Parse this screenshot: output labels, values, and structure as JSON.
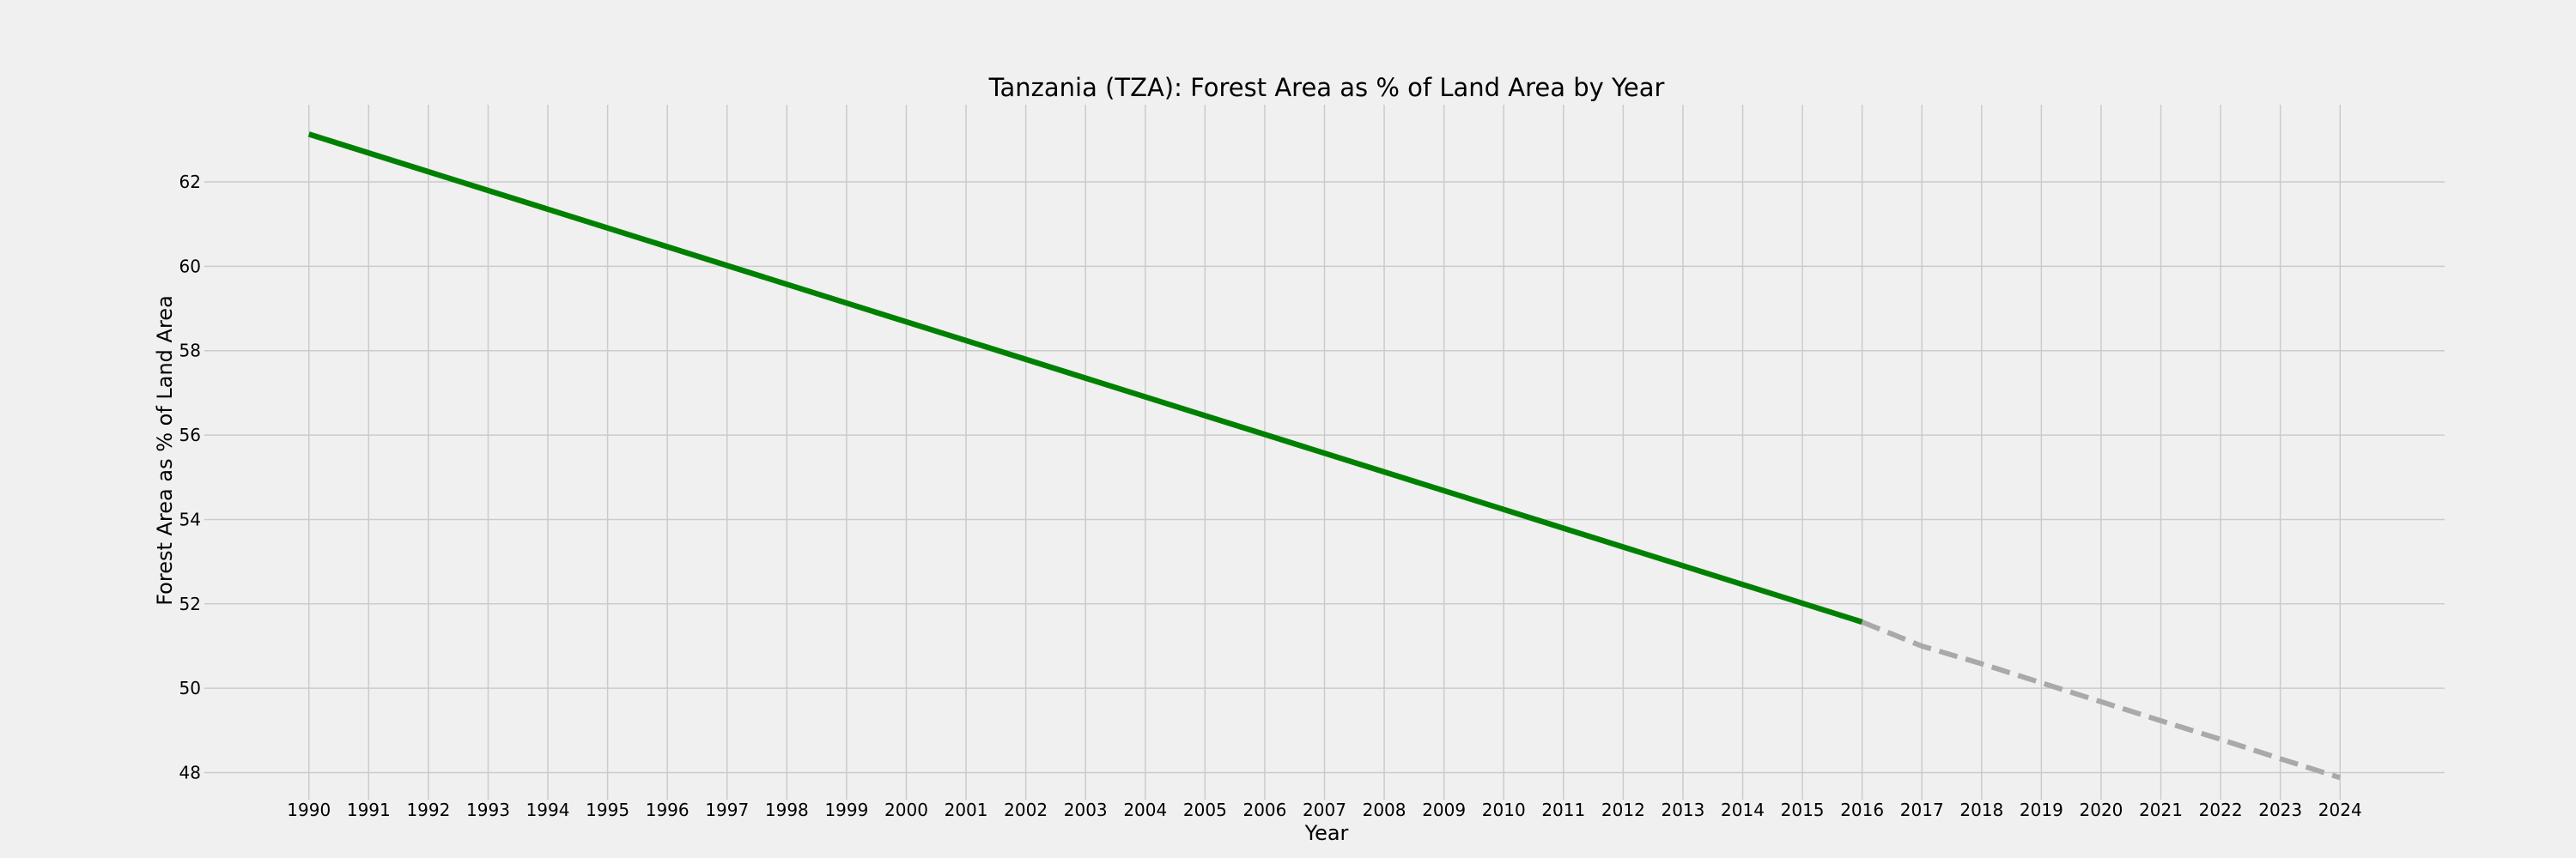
{
  "chart_data": {
    "type": "line",
    "title": "Tanzania (TZA): Forest Area as % of Land Area by Year",
    "xlabel": "Year",
    "ylabel": "Forest Area as % of Land Area",
    "x_ticks": [
      1990,
      1991,
      1992,
      1993,
      1994,
      1995,
      1996,
      1997,
      1998,
      1999,
      2000,
      2001,
      2002,
      2003,
      2004,
      2005,
      2006,
      2007,
      2008,
      2009,
      2010,
      2011,
      2012,
      2013,
      2014,
      2015,
      2016,
      2017,
      2018,
      2019,
      2020,
      2021,
      2022,
      2023,
      2024
    ],
    "y_ticks": [
      48,
      50,
      52,
      54,
      56,
      58,
      60,
      62
    ],
    "xlim": [
      1988.25,
      2025.75
    ],
    "ylim": [
      47.36,
      63.83
    ],
    "grid": true,
    "series": [
      {
        "style": "solid",
        "color": "#008000",
        "x": [
          1990,
          2016
        ],
        "y": [
          63.13,
          51.57
        ]
      },
      {
        "style": "dashed",
        "color": "#a9a9a9",
        "x": [
          2016,
          2017,
          2018,
          2019,
          2020,
          2021,
          2022,
          2023,
          2024
        ],
        "y": [
          51.57,
          51.0,
          50.58,
          50.13,
          49.68,
          49.23,
          48.79,
          48.33,
          47.88
        ]
      }
    ]
  }
}
